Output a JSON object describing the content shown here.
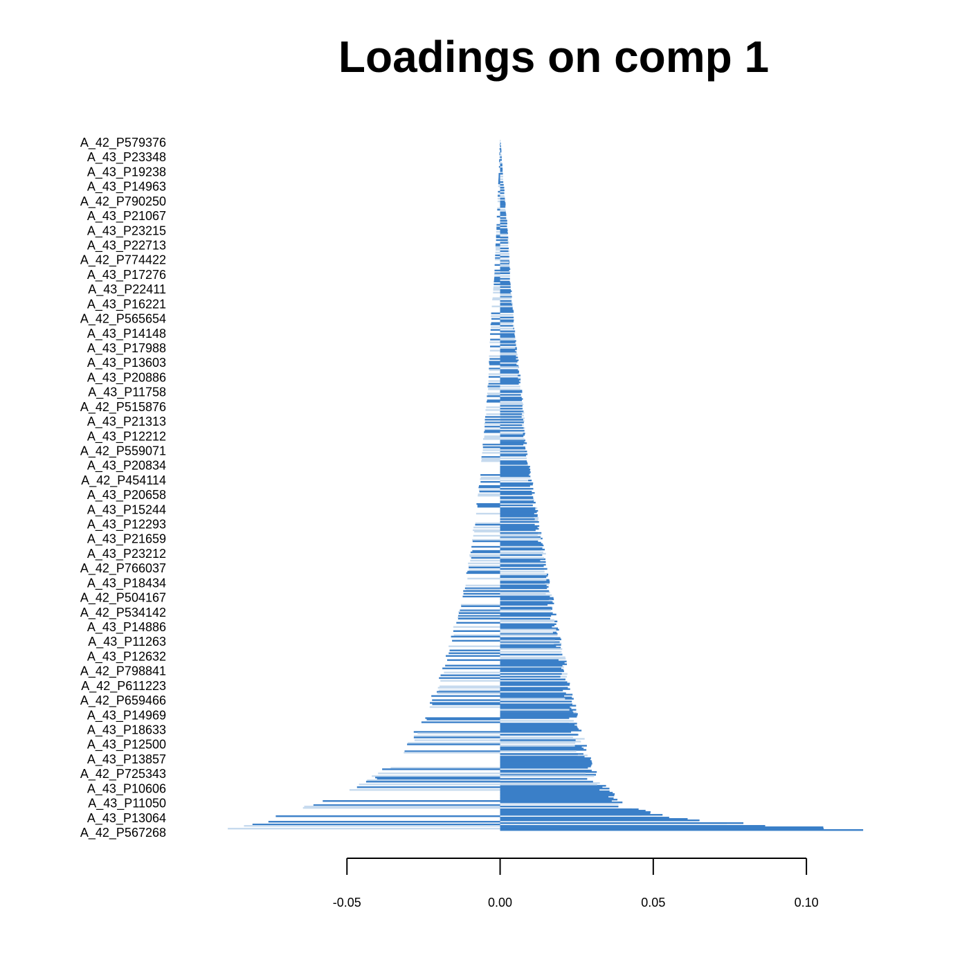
{
  "chart_data": {
    "type": "bar",
    "orientation": "horizontal",
    "title": "Loadings on comp 1",
    "xlabel": "",
    "ylabel": "",
    "xlim": [
      -0.1,
      0.135
    ],
    "x_ticks": [
      -0.05,
      0.0,
      0.05,
      0.1
    ],
    "x_tick_labels": [
      "-0.05",
      "0.00",
      "0.05",
      "0.10"
    ],
    "grid": false,
    "legend": "none",
    "colors": {
      "dark": "#3a7fc8",
      "light": "#c6daee"
    },
    "categories": [
      "A_42_P579376",
      "A_43_P23348",
      "A_43_P19238",
      "A_43_P14963",
      "A_42_P790250",
      "A_43_P21067",
      "A_43_P23215",
      "A_43_P22713",
      "A_42_P774422",
      "A_43_P17276",
      "A_43_P22411",
      "A_43_P16221",
      "A_42_P565654",
      "A_43_P14148",
      "A_43_P17988",
      "A_43_P13603",
      "A_43_P20886",
      "A_43_P11758",
      "A_42_P515876",
      "A_43_P21313",
      "A_43_P12212",
      "A_42_P559071",
      "A_43_P20834",
      "A_42_P454114",
      "A_43_P20658",
      "A_43_P15244",
      "A_43_P12293",
      "A_43_P21659",
      "A_43_P23212",
      "A_42_P766037",
      "A_43_P18434",
      "A_42_P504167",
      "A_42_P534142",
      "A_43_P14886",
      "A_43_P11263",
      "A_43_P12632",
      "A_42_P798841",
      "A_42_P611223",
      "A_42_P659466",
      "A_43_P14969",
      "A_43_P18633",
      "A_43_P12500",
      "A_43_P13857",
      "A_42_P725343",
      "A_43_P10606",
      "A_43_P11050",
      "A_43_P13064",
      "A_42_P567268"
    ],
    "envelope": {
      "y_fraction": [
        0.0,
        0.05,
        0.1,
        0.15,
        0.2,
        0.25,
        0.3,
        0.35,
        0.4,
        0.45,
        0.5,
        0.55,
        0.6,
        0.65,
        0.7,
        0.75,
        0.8,
        0.85,
        0.9,
        0.93,
        0.96,
        0.98,
        0.99,
        1.0
      ],
      "positive_max": [
        0.0002,
        0.001,
        0.002,
        0.003,
        0.0035,
        0.0045,
        0.0055,
        0.007,
        0.008,
        0.009,
        0.011,
        0.013,
        0.015,
        0.017,
        0.019,
        0.0215,
        0.024,
        0.0265,
        0.03,
        0.034,
        0.04,
        0.055,
        0.08,
        0.126
      ],
      "negative_min": [
        -0.0001,
        -0.0005,
        -0.001,
        -0.0015,
        -0.002,
        -0.003,
        -0.0035,
        -0.004,
        -0.005,
        -0.006,
        -0.007,
        -0.0085,
        -0.01,
        -0.012,
        -0.015,
        -0.018,
        -0.022,
        -0.027,
        -0.035,
        -0.045,
        -0.06,
        -0.075,
        -0.08,
        -0.1
      ]
    }
  }
}
